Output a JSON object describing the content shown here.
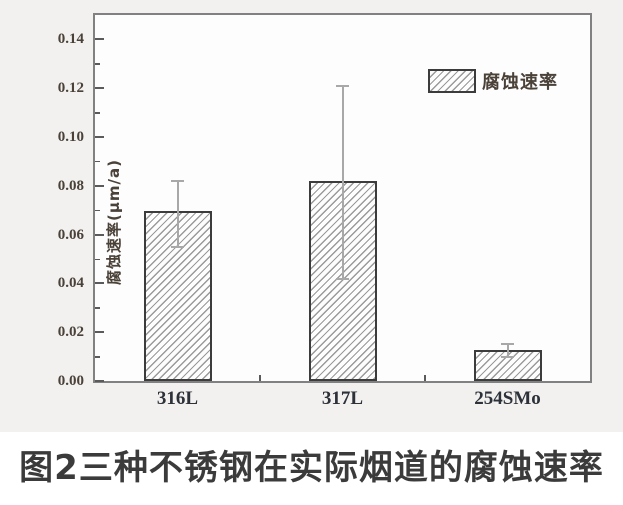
{
  "caption": "图2三种不锈钢在实际烟道的腐蚀速率",
  "chart_data": {
    "type": "bar",
    "title": "",
    "xlabel": "",
    "ylabel": "腐蚀速率(μm/a)",
    "categories": [
      "316L",
      "317L",
      "254SMo"
    ],
    "series": [
      {
        "name": "腐蚀速率",
        "values": [
          0.069,
          0.081,
          0.012
        ],
        "error_low": [
          0.055,
          0.042,
          0.01
        ],
        "error_high": [
          0.082,
          0.121,
          0.015
        ]
      }
    ],
    "ylim": [
      0,
      0.15
    ],
    "yticks": [
      {
        "v": 0.0,
        "label": "0.00"
      },
      {
        "v": 0.02,
        "label": "0.02"
      },
      {
        "v": 0.04,
        "label": "0.04"
      },
      {
        "v": 0.06,
        "label": "0.06"
      },
      {
        "v": 0.08,
        "label": "0.08"
      },
      {
        "v": 0.1,
        "label": "0.10"
      },
      {
        "v": 0.12,
        "label": "0.12"
      },
      {
        "v": 0.14,
        "label": "0.14"
      }
    ],
    "yticks_minor": [
      0.01,
      0.03,
      0.05,
      0.07,
      0.09,
      0.11,
      0.13
    ],
    "grid": false,
    "bar_style": "white-with-diagonal-hatch",
    "legend": {
      "position": "top-right",
      "entries": [
        "腐蚀速率"
      ]
    }
  },
  "colors": {
    "figure_bg": "#f2f1ef",
    "plot_bg": "#fdfdfd",
    "frame": "#818181",
    "tick": "#5a5a5a",
    "tick_label": "#4a4138",
    "xcat_label": "#2c313a",
    "bar_border": "#3c3c3c",
    "hatch": "#9a9a9a",
    "error": "#a8a8a8",
    "caption": "#3b3b3b"
  }
}
